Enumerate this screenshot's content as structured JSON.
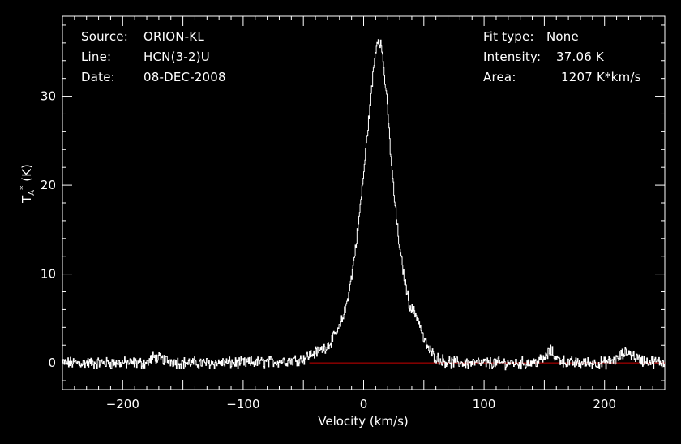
{
  "header": {
    "source_label": "Source:",
    "source_value": "ORION-KL",
    "line_label": "Line:",
    "line_value": "HCN(3-2)U",
    "date_label": "Date:",
    "date_value": "08-DEC-2008",
    "fit_label": "Fit type:",
    "fit_value": "None",
    "intensity_label": "Intensity:",
    "intensity_value": "37.06 K",
    "area_label": "Area:",
    "area_value": "1207 K*km/s"
  },
  "chart_data": {
    "type": "line",
    "xlabel": "Velocity (km/s)",
    "ylabel": "TA* (K)",
    "xlim": [
      -250,
      250
    ],
    "ylim": [
      -3,
      39
    ],
    "xticks": [
      -200,
      -100,
      0,
      100,
      200
    ],
    "yticks": [
      0,
      10,
      20,
      30
    ],
    "grid": false,
    "series": [
      {
        "color": "#ffffff",
        "x": [
          -250,
          -230,
          -200,
          -180,
          -175,
          -150,
          -120,
          -100,
          -80,
          -70,
          -60,
          -50,
          -45,
          -40,
          -35,
          -30,
          -25,
          -20,
          -15,
          -10,
          -5,
          0,
          3,
          6,
          8,
          10,
          12,
          14,
          16,
          18,
          20,
          22,
          25,
          28,
          30,
          35,
          38,
          40,
          42,
          45,
          48,
          50,
          55,
          60,
          65,
          70,
          80,
          100,
          120,
          140,
          150,
          155,
          160,
          170,
          200,
          210,
          215,
          220,
          225,
          230,
          250
        ],
        "y": [
          0,
          0,
          0,
          0,
          0.6,
          0,
          0,
          0,
          0.1,
          0.2,
          0.3,
          0.5,
          0.9,
          1.2,
          1.5,
          2.0,
          2.8,
          4.0,
          6.2,
          9.8,
          15.0,
          21.5,
          26,
          30,
          33,
          35.5,
          36.5,
          36,
          34,
          31,
          28,
          24,
          19,
          15,
          12.5,
          8.5,
          6.5,
          6,
          5.7,
          5,
          3.5,
          2.5,
          1.3,
          0.6,
          0.3,
          0.1,
          0,
          0,
          0,
          0,
          0.5,
          1.4,
          0.5,
          0,
          0,
          0.4,
          1.0,
          1.2,
          0.7,
          0.3,
          0
        ]
      }
    ],
    "baseline": {
      "color": "#cc0000",
      "x": [
        -45,
        250
      ],
      "y": [
        0,
        0
      ]
    }
  }
}
